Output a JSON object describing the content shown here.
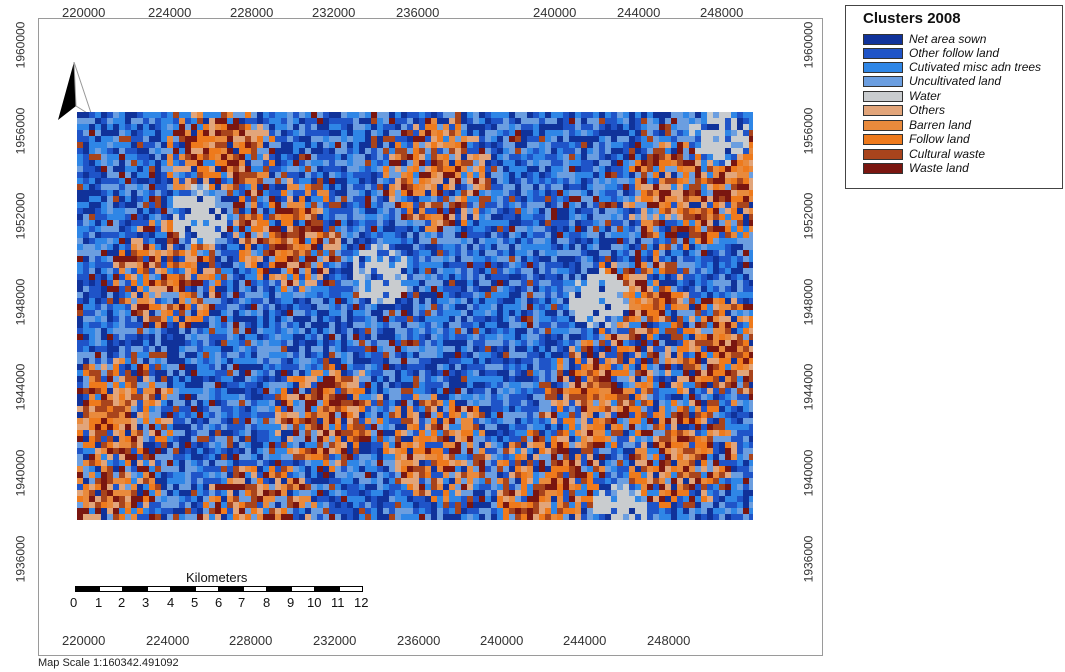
{
  "legend": {
    "title": "Clusters 2008",
    "items": [
      {
        "label": "Net area sown",
        "color": "#10329a"
      },
      {
        "label": "Other follow land",
        "color": "#1f54c8"
      },
      {
        "label": "Cutivated misc adn trees",
        "color": "#2f86e6"
      },
      {
        "label": "Uncultivated land",
        "color": "#6b9ee0"
      },
      {
        "label": "Water",
        "color": "#c9cccf"
      },
      {
        "label": "Others",
        "color": "#e2a57a"
      },
      {
        "label": "Barren land",
        "color": "#e98a3c"
      },
      {
        "label": "Follow land",
        "color": "#ee7a1c"
      },
      {
        "label": "Cultural waste",
        "color": "#a8441c"
      },
      {
        "label": "Waste land",
        "color": "#7a1610"
      }
    ]
  },
  "x_ticks_top": [
    "220000",
    "224000",
    "228000",
    "232000",
    "236000",
    "240000",
    "244000",
    "248000"
  ],
  "x_ticks_bottom": [
    "220000",
    "224000",
    "228000",
    "232000",
    "236000",
    "240000",
    "244000",
    "248000"
  ],
  "y_ticks_left": [
    "1960000",
    "1956000",
    "1952000",
    "1948000",
    "1944000",
    "1940000",
    "1936000"
  ],
  "y_ticks_right": [
    "1960000",
    "1956000",
    "1952000",
    "1948000",
    "1944000",
    "1940000",
    "1936000"
  ],
  "scalebar": {
    "title": "Kilometers",
    "labels": [
      "0",
      "1",
      "2",
      "3",
      "4",
      "5",
      "6",
      "7",
      "8",
      "9",
      "10",
      "11",
      "12"
    ]
  },
  "map_scale_text": "Map Scale 1:160342.491092"
}
